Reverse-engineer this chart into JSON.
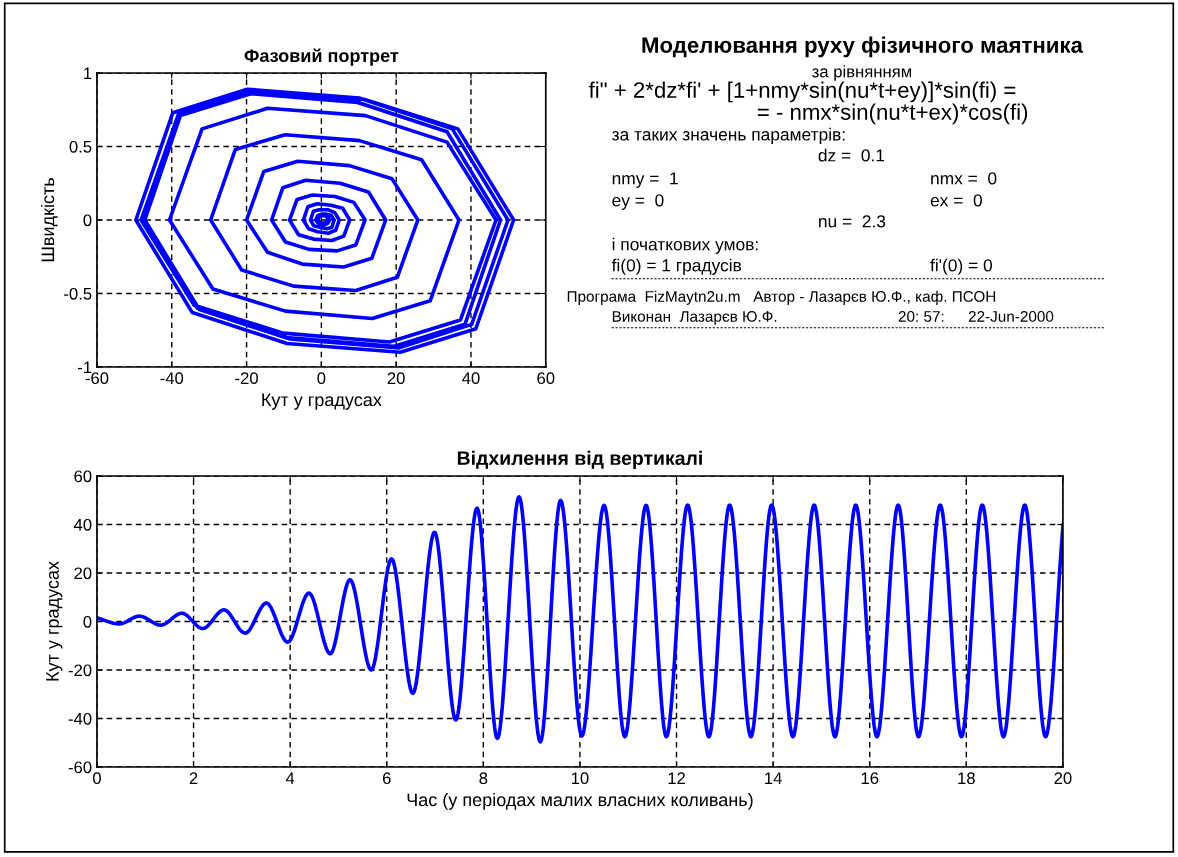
{
  "chart_data": [
    {
      "type": "line",
      "title": "Фазовий портрет",
      "xlabel": "Кут у градусах",
      "ylabel": "Швидкість",
      "xlim": [
        -60,
        60
      ],
      "xticks": [
        -60,
        -40,
        -20,
        0,
        20,
        40,
        60
      ],
      "ylim": [
        -1,
        1
      ],
      "yticks": [
        -1,
        -0.5,
        0,
        0.5,
        1
      ],
      "grid": true,
      "line_style": "solid",
      "series": [
        {
          "color": "#0000ff",
          "x": [
            1.5,
            1.25,
            0.75,
            0,
            -0.6,
            -1,
            -0.7,
            -0.04,
            0.9,
            1.7,
            2.2,
            1.8,
            1.1,
            0,
            -0.9,
            -1.5,
            -1.0,
            0,
            1.4,
            2.7,
            3.4,
            2.8,
            1.5,
            -0.4,
            -2.0,
            -2.9,
            -2.1,
            -0.6,
            1.7,
            3.6,
            4.8,
            3.8,
            1.9,
            -1.0,
            -3.4,
            -4.8,
            -3.6,
            -1.1,
            2.6,
            5.7,
            7.6,
            6.0,
            2.8,
            -2.1,
            -6.1,
            -8.5,
            -6.5,
            -2.4,
            3.6,
            8.7,
            11.7,
            9.2,
            4.2,
            -3.3,
            -9.6,
            -13.3,
            -10.3,
            -4.2,
            5.0,
            12.6,
            17.2,
            13.5,
            6.0,
            -5.1,
            -14.4,
            -20,
            -15.4,
            -6.3,
            7.5,
            18.9,
            25.8,
            20.3,
            9.2,
            -7.4,
            -21.3,
            -29.6,
            -23.0,
            -9.7,
            10.2,
            26.8,
            36.8,
            29.1,
            13.6,
            -9.6,
            -29.0,
            -40.6,
            -31.9,
            -14.4,
            11.8,
            33.6,
            46.7,
            37.2,
            18.2,
            -10.2,
            -34.0,
            -48.2,
            -38.2,
            -18.3,
            11.6,
            36.5,
            51.4,
            41.3,
            21.1,
            -9.2,
            -34.5,
            -49.6,
            -39.7,
            -19.8,
            10.1,
            35.0,
            49.9,
            40.2,
            20.8,
            -8.4,
            -32.6,
            -47.2,
            -37.7,
            -18.7,
            9.9,
            33.6,
            47.9,
            38.4,
            19.3,
            -9.3,
            -33.2,
            -47.5,
            -38.0,
            -18.9,
            9.7,
            33.6,
            47.9
          ],
          "values": [
            0,
            -0.02,
            -0.02,
            -0.02,
            -0.01,
            0,
            0.02,
            0.03,
            0.03,
            0.02,
            0,
            -0.02,
            -0.03,
            -0.03,
            -0.02,
            0,
            0.03,
            0.04,
            0.04,
            0.03,
            0,
            -0.05,
            -0.06,
            -0.05,
            -0.04,
            0,
            0.06,
            0.07,
            0.07,
            0.05,
            0,
            -0.07,
            -0.09,
            -0.08,
            -0.06,
            0,
            0.09,
            0.11,
            0.1,
            0.08,
            0,
            -0.11,
            -0.14,
            -0.13,
            -0.1,
            0,
            0.14,
            0.17,
            0.16,
            0.12,
            0,
            -0.17,
            -0.21,
            -0.2,
            -0.15,
            0,
            0.22,
            0.27,
            0.25,
            0.19,
            0,
            -0.26,
            -0.32,
            -0.3,
            -0.22,
            0,
            0.33,
            0.4,
            0.37,
            0.28,
            0,
            -0.39,
            -0.48,
            -0.45,
            -0.34,
            0,
            0.48,
            0.58,
            0.54,
            0.41,
            0,
            -0.55,
            -0.67,
            -0.62,
            -0.47,
            0,
            0.62,
            0.76,
            0.71,
            0.53,
            0,
            -0.68,
            -0.83,
            -0.77,
            -0.58,
            0,
            0.72,
            0.88,
            0.82,
            0.62,
            0,
            -0.74,
            -0.9,
            -0.84,
            -0.63,
            0,
            0.73,
            0.89,
            0.83,
            0.62,
            0,
            -0.71,
            -0.87,
            -0.81,
            -0.61,
            0,
            0.71,
            0.86,
            0.8,
            0.6,
            0,
            -0.71,
            -0.86,
            -0.8,
            -0.6,
            0,
            0.71,
            0.86,
            0.8,
            0.6,
            0
          ]
        }
      ]
    },
    {
      "type": "line",
      "title": "Відхилення від вертикалі",
      "xlabel": "Час (у періодах малих власних коливань)",
      "ylabel": "Кут у градусах",
      "xlim": [
        0,
        20
      ],
      "xticks": [
        0,
        2,
        4,
        6,
        8,
        10,
        12,
        14,
        16,
        18,
        20
      ],
      "ylim": [
        -60,
        60
      ],
      "yticks": [
        -60,
        -40,
        -20,
        0,
        20,
        40,
        60
      ],
      "grid": true,
      "line_style": "solid",
      "series": [
        {
          "color": "#0000ff",
          "x": [
            0,
            0.46,
            0.88,
            1.32,
            1.76,
            2.19,
            2.63,
            3.07,
            3.51,
            3.95,
            4.39,
            4.83,
            5.24,
            5.68,
            6.1,
            6.54,
            6.99,
            7.43,
            7.87,
            8.29,
            8.74,
            9.18,
            9.6,
            10.04,
            10.5,
            10.93,
            11.37,
            11.79,
            12.23,
            12.67,
            13.1,
            13.54,
            13.97,
            14.41,
            14.85,
            15.28,
            15.71,
            16.15,
            16.59,
            17.01,
            17.46,
            17.9,
            18.33,
            18.77,
            19.21,
            19.64,
            20
          ],
          "values": [
            1.5,
            -1,
            2.2,
            -1.5,
            3.4,
            -2.9,
            4.8,
            -4.8,
            7.6,
            -8.5,
            11.7,
            -13.3,
            17.2,
            -20,
            25.8,
            -29.6,
            36.8,
            -40.6,
            46.7,
            -48.2,
            51.4,
            -49.6,
            49.9,
            -47.2,
            47.9,
            -47.5,
            47.9,
            -47.5,
            48,
            -47.5,
            48,
            -47.5,
            48,
            -47.5,
            48,
            -47.5,
            48,
            -47.5,
            48,
            -47.5,
            48,
            -47.5,
            48,
            -47.5,
            48,
            -47.5,
            39
          ]
        }
      ]
    },
    {
      "type": "other",
      "title": "Моделювання руху фізичного маятника",
      "annotations": [
        "за рівнянням",
        "fi\" + 2*dz*fi' + [1+nmy*sin(nu*t+ey)]*sin(fi) =",
        "= - nmx*sin(nu*t+ex)*cos(fi)",
        "за таких значень параметрів:",
        "dz =  0.1",
        "nmy =  1",
        "nmx =  0",
        "ey =  0",
        "ex =  0",
        "nu =  2.3",
        "і початкових умов:",
        "fi(0) = 1 градусів",
        "fi'(0) = 0",
        "Програма  FizMaytn2u.m   Автор - Лазарєв Ю.Ф., каф. ПСОН",
        "Виконан  Лазарєв Ю.Ф.",
        "20: 57:",
        "22-Jun-2000"
      ]
    }
  ]
}
